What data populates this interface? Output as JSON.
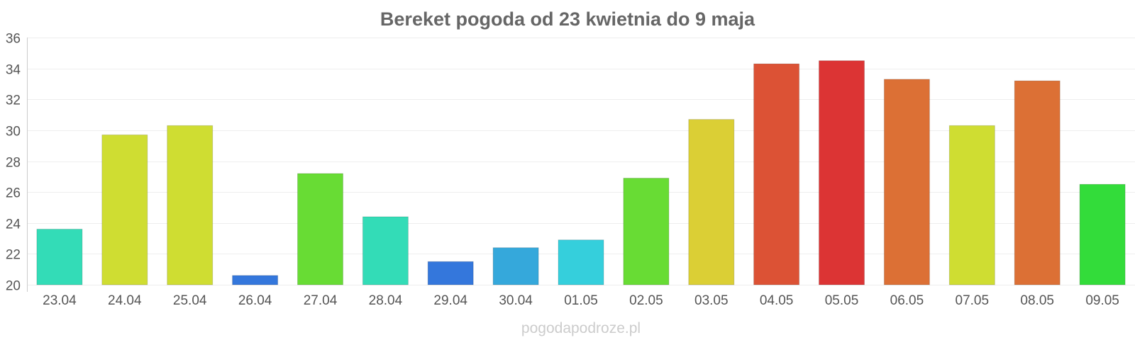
{
  "chart_data": {
    "type": "bar",
    "title": "Bereket pogoda od 23 kwietnia do 9 maja",
    "xlabel": "",
    "ylabel": "",
    "ylim": [
      20,
      36
    ],
    "yticks": [
      "20",
      "22",
      "24",
      "26",
      "28",
      "30",
      "32",
      "34",
      "36"
    ],
    "grid": true,
    "categories": [
      "23.04",
      "24.04",
      "25.04",
      "26.04",
      "27.04",
      "28.04",
      "29.04",
      "30.04",
      "01.05",
      "02.05",
      "03.05",
      "04.05",
      "05.05",
      "06.05",
      "07.05",
      "08.05",
      "09.05"
    ],
    "values": [
      23.6,
      29.7,
      30.3,
      20.6,
      27.2,
      24.4,
      21.5,
      22.4,
      22.9,
      26.9,
      30.7,
      34.3,
      34.5,
      33.3,
      30.3,
      33.2,
      26.5
    ],
    "colors": [
      "#33dcb7",
      "#cfdd32",
      "#cfdd32",
      "#3477dc",
      "#68dc34",
      "#33dcb7",
      "#3477dc",
      "#35a8db",
      "#35cfdc",
      "#68dc34",
      "#dbcf35",
      "#dc5235",
      "#dc3434",
      "#dc7035",
      "#cfdd32",
      "#dc7035",
      "#33dc3a"
    ]
  },
  "footer": {
    "watermark": "pogodapodroze.pl"
  }
}
